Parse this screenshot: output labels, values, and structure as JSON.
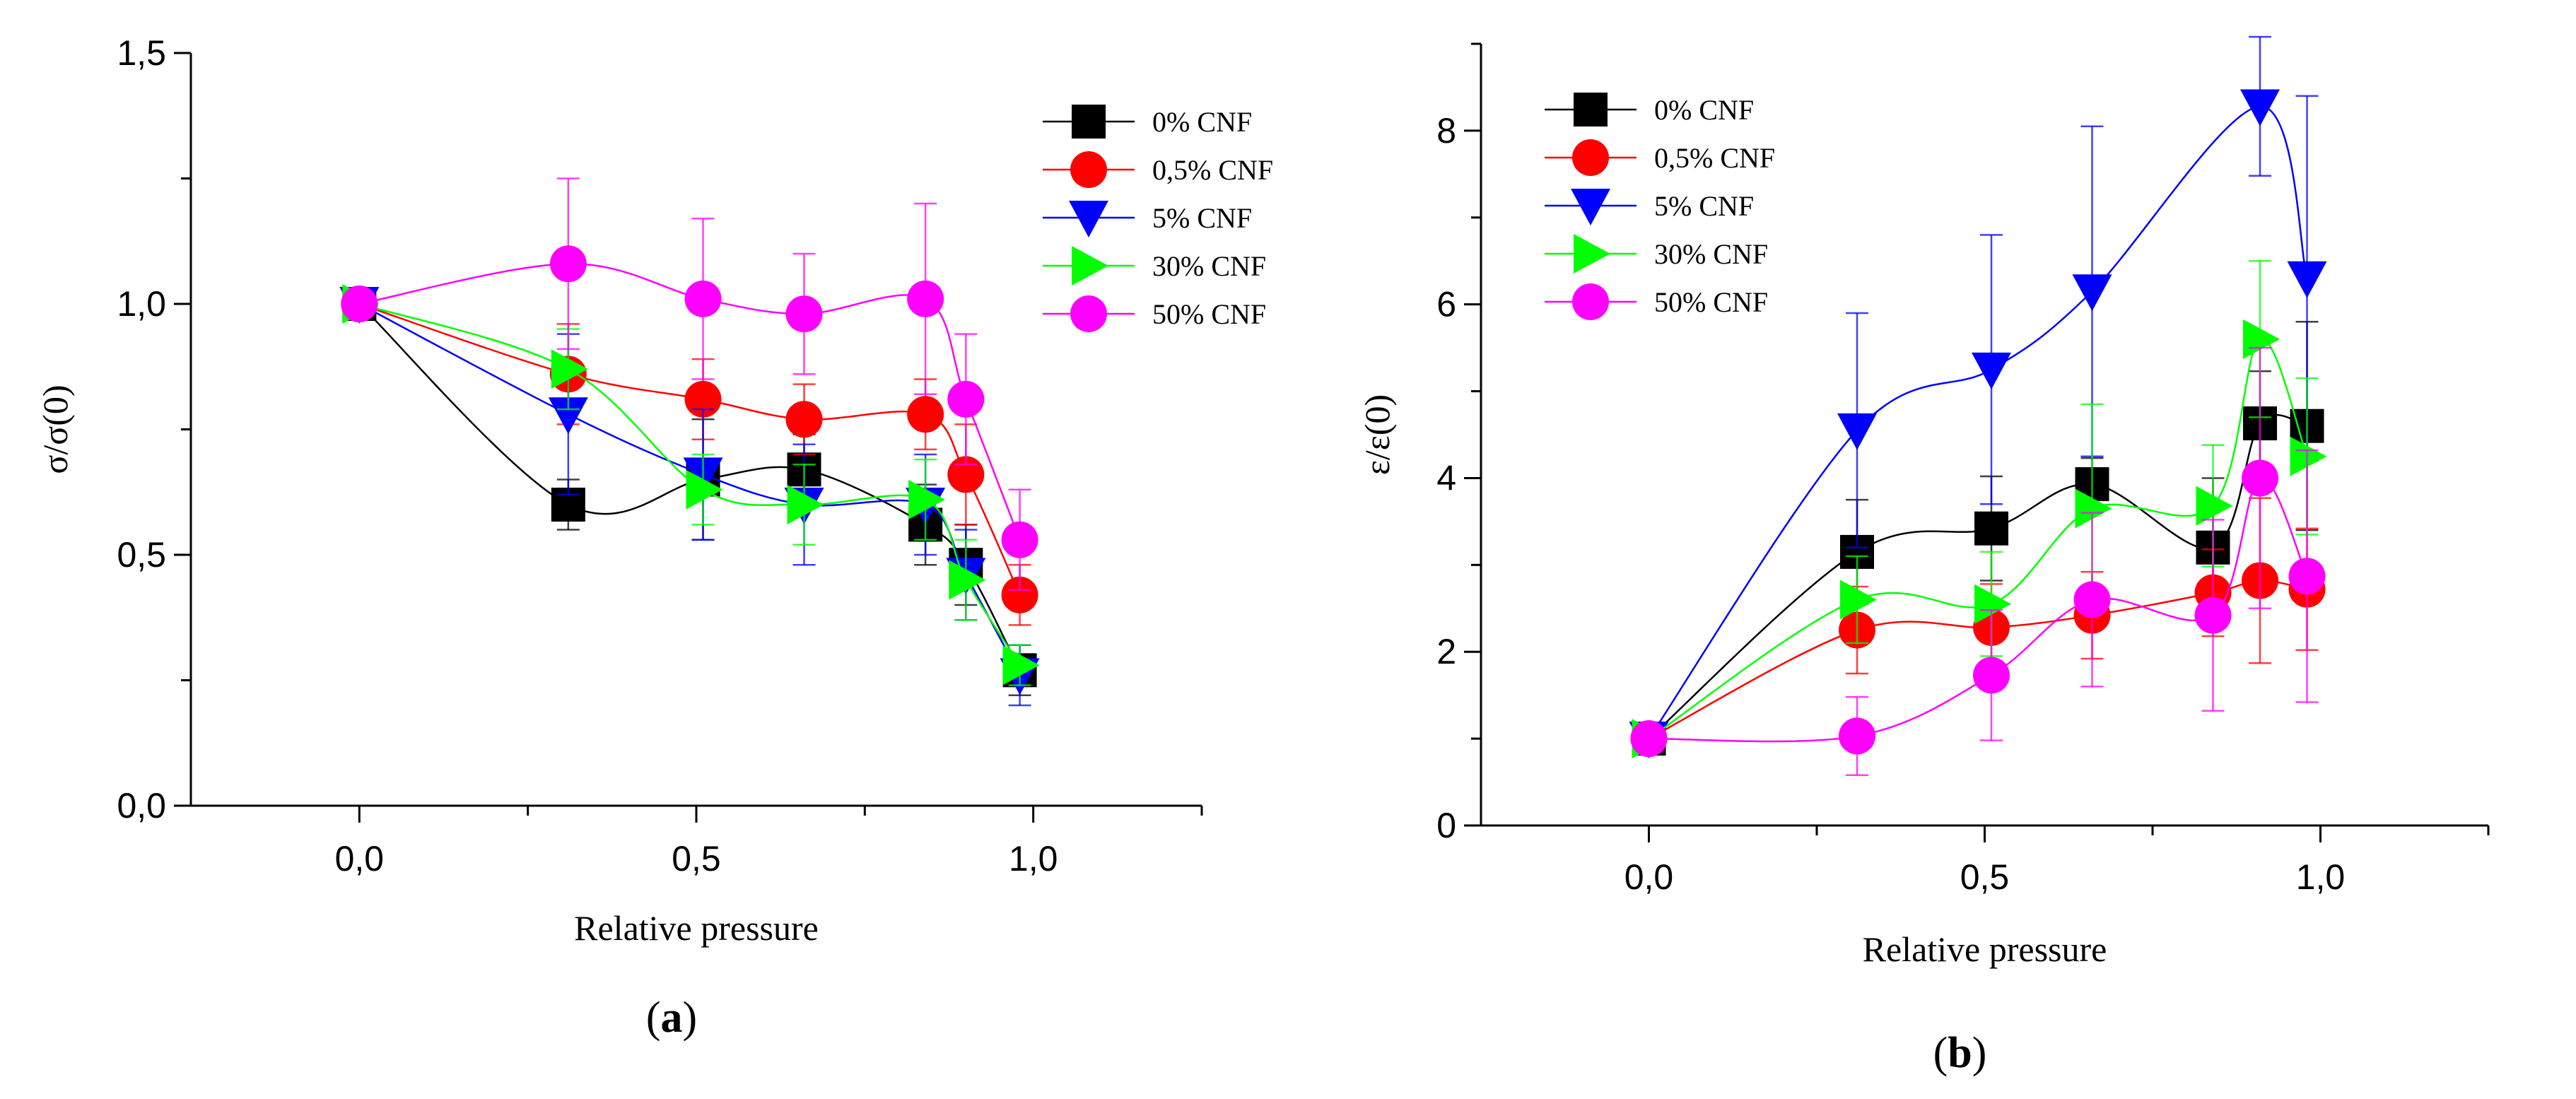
{
  "chart_data": [
    {
      "type": "scatter",
      "panel": "a",
      "panel_label": "(a)",
      "panel_letter": "a",
      "xlabel": "Relative pressure",
      "ylabel": "σ/σ(0)",
      "xlim": [
        -0.25,
        1.25
      ],
      "ylim": [
        0,
        1.5
      ],
      "x_ticks": [
        0.0,
        0.5,
        1.0
      ],
      "x_tick_labels": [
        "0,0",
        "0,5",
        "1,0"
      ],
      "y_ticks": [
        0.0,
        0.5,
        1.0,
        1.5
      ],
      "y_tick_labels": [
        "0,0",
        "0,5",
        "1,0",
        "1,5"
      ],
      "legend_position": "top-right",
      "grid": false,
      "x": [
        0.0,
        0.31,
        0.51,
        0.66,
        0.84,
        0.9,
        0.98
      ],
      "series": [
        {
          "name": "0% CNF",
          "color": "#000000",
          "marker": "square",
          "values": [
            1.0,
            0.6,
            0.65,
            0.67,
            0.56,
            0.48,
            0.27
          ],
          "errors": [
            0.0,
            0.05,
            0.12,
            0.07,
            0.08,
            0.08,
            0.05
          ]
        },
        {
          "name": "0,5% CNF",
          "color": "#ff0000",
          "marker": "circle",
          "values": [
            1.0,
            0.86,
            0.81,
            0.77,
            0.78,
            0.66,
            0.42
          ],
          "errors": [
            0.0,
            0.1,
            0.08,
            0.07,
            0.07,
            0.1,
            0.06
          ]
        },
        {
          "name": "5% CNF",
          "color": "#0000ff",
          "marker": "triangle-down",
          "values": [
            1.0,
            0.78,
            0.66,
            0.6,
            0.6,
            0.46,
            0.26
          ],
          "errors": [
            0.0,
            0.16,
            0.13,
            0.12,
            0.1,
            0.09,
            0.06
          ]
        },
        {
          "name": "30% CNF",
          "color": "#00ff00",
          "marker": "triangle-right",
          "values": [
            1.0,
            0.87,
            0.63,
            0.6,
            0.61,
            0.45,
            0.28
          ],
          "errors": [
            0.0,
            0.08,
            0.07,
            0.08,
            0.08,
            0.08,
            0.04
          ]
        },
        {
          "name": "50% CNF",
          "color": "#ff00ff",
          "marker": "circle",
          "values": [
            1.0,
            1.08,
            1.01,
            0.98,
            1.01,
            0.81,
            0.53
          ],
          "errors": [
            0.0,
            0.17,
            0.16,
            0.12,
            0.19,
            0.13,
            0.1
          ]
        }
      ]
    },
    {
      "type": "scatter",
      "panel": "b",
      "panel_label": "(b)",
      "panel_letter": "b",
      "xlabel": "Relative pressure",
      "ylabel": "ε/ε(0)",
      "xlim": [
        -0.25,
        1.25
      ],
      "ylim": [
        0,
        9
      ],
      "x_ticks": [
        0.0,
        0.5,
        1.0
      ],
      "x_tick_labels": [
        "0,0",
        "0,5",
        "1,0"
      ],
      "y_ticks": [
        0,
        2,
        4,
        6,
        8
      ],
      "y_tick_labels": [
        "0",
        "2",
        "4",
        "6",
        "8"
      ],
      "legend_position": "top-left",
      "grid": false,
      "x": [
        0.0,
        0.31,
        0.51,
        0.66,
        0.84,
        0.91,
        0.98
      ],
      "series": [
        {
          "name": "0% CNF",
          "color": "#000000",
          "marker": "square",
          "values": [
            1.0,
            3.15,
            3.42,
            3.93,
            3.2,
            4.63,
            4.6
          ],
          "errors": [
            0.08,
            0.6,
            0.6,
            0.3,
            0.8,
            0.6,
            1.2
          ]
        },
        {
          "name": "0,5% CNF",
          "color": "#ff0000",
          "marker": "circle",
          "values": [
            1.0,
            2.25,
            2.28,
            2.42,
            2.68,
            2.82,
            2.72
          ],
          "errors": [
            0.08,
            0.5,
            0.5,
            0.5,
            0.5,
            0.95,
            0.7
          ]
        },
        {
          "name": "5% CNF",
          "color": "#0000ff",
          "marker": "triangle-down",
          "values": [
            1.0,
            4.55,
            5.25,
            6.15,
            null,
            8.28,
            6.3
          ],
          "errors": [
            0.08,
            1.35,
            1.55,
            1.9,
            0,
            0.8,
            2.1
          ]
        },
        {
          "name": "30% CNF",
          "color": "#00ff00",
          "marker": "triangle-right",
          "values": [
            1.0,
            2.6,
            2.55,
            3.65,
            3.68,
            5.6,
            4.25
          ],
          "errors": [
            0.08,
            0.5,
            0.6,
            1.2,
            0.7,
            0.9,
            0.9
          ]
        },
        {
          "name": "50% CNF",
          "color": "#ff00ff",
          "marker": "circle",
          "values": [
            1.0,
            1.03,
            1.73,
            2.6,
            2.42,
            4.0,
            2.87
          ],
          "errors": [
            0.05,
            0.45,
            0.75,
            1.0,
            1.1,
            1.5,
            1.45
          ]
        }
      ]
    }
  ]
}
